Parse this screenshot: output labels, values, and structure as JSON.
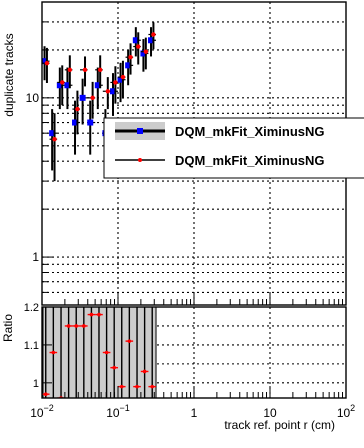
{
  "chart_data": {
    "type": "scatter",
    "title": "",
    "xlabel": "track ref. point r (cm)",
    "ylabel": "duplicate tracks",
    "ratio_ylabel": "Ratio",
    "x_scale": "log",
    "y_scale": "log",
    "xlim": [
      0.01,
      100
    ],
    "ylim": [
      0.5,
      40
    ],
    "ratio_ylim": [
      0.96,
      1.2
    ],
    "grid": true,
    "legend_position": "right",
    "x_ticks": [
      {
        "value": 0.01,
        "label": "10",
        "exp": "−2"
      },
      {
        "value": 0.1,
        "label": "10",
        "exp": "−1"
      },
      {
        "value": 1,
        "label": "1",
        "exp": ""
      },
      {
        "value": 10,
        "label": "10",
        "exp": ""
      },
      {
        "value": 100,
        "label": "10",
        "exp": "2"
      }
    ],
    "y_ticks": [
      {
        "value": 1,
        "label": "1"
      },
      {
        "value": 10,
        "label": "10"
      }
    ],
    "ratio_ticks": [
      {
        "value": 1,
        "label": "1"
      },
      {
        "value": 1.1,
        "label": "1.1"
      },
      {
        "value": 1.2,
        "label": "1.2"
      }
    ],
    "x": [
      0.0112,
      0.0141,
      0.0178,
      0.0224,
      0.0282,
      0.0355,
      0.0447,
      0.0562,
      0.0708,
      0.0891,
      0.112,
      0.141,
      0.178,
      0.224,
      0.282
    ],
    "series": [
      {
        "name": "DQM_mkFit_XiminusNG",
        "color": "#0000ff",
        "marker": "square",
        "values": [
          17,
          6,
          12,
          12,
          7,
          10,
          7,
          12,
          6,
          11,
          13,
          16,
          23,
          19,
          23
        ],
        "errors": [
          4.1,
          2.5,
          3.5,
          3.5,
          2.6,
          3.2,
          2.6,
          3.5,
          2.5,
          3.3,
          3.6,
          4.0,
          4.8,
          4.4,
          4.8
        ]
      },
      {
        "name": "DQM_mkFit_XiminusNG",
        "color": "#ff0000",
        "marker": "dot",
        "values": [
          16.5,
          5.5,
          12.5,
          15,
          8.5,
          15,
          10,
          15,
          11,
          12.5,
          13.5,
          18,
          21,
          19.5,
          25
        ],
        "errors": [
          4.1,
          2.5,
          3.5,
          3.5,
          2.6,
          3.2,
          2.6,
          3.5,
          2.5,
          3.3,
          3.6,
          4.0,
          4.8,
          4.4,
          4.8
        ]
      }
    ],
    "ratio": [
      0.97,
      1.08,
      0.96,
      1.15,
      1.15,
      1.15,
      1.18,
      1.18,
      1.08,
      1.04,
      0.99,
      1.11,
      0.99,
      1.03,
      0.99
    ]
  }
}
